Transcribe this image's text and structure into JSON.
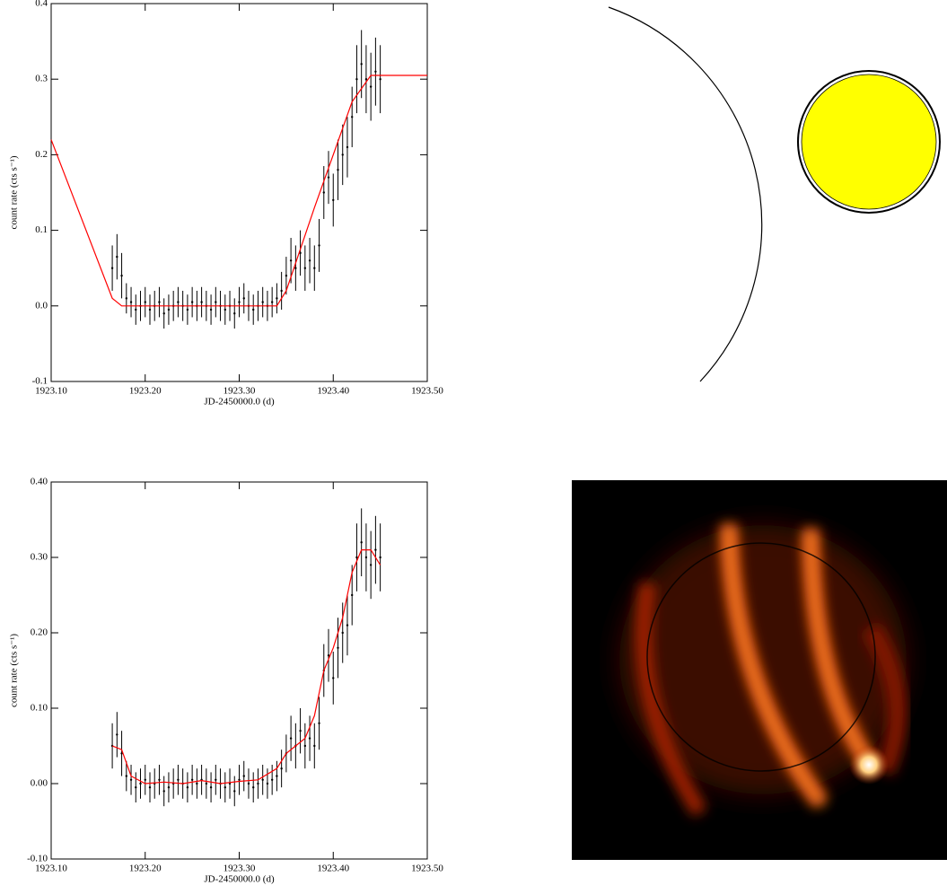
{
  "chart_data": [
    {
      "type": "errorbar",
      "xlabel": "JD-2450000.0 (d)",
      "ylabel": "count rate (cts s⁻¹)",
      "xlim": [
        1923.1,
        1923.5
      ],
      "xticks": [
        {
          "value": 1923.1,
          "label": "1923.10"
        },
        {
          "value": 1923.2,
          "label": "1923.20"
        },
        {
          "value": 1923.3,
          "label": "1923.30"
        },
        {
          "value": 1923.4,
          "label": "1923.40"
        },
        {
          "value": 1923.5,
          "label": "1923.50"
        }
      ],
      "ylim": [
        -0.1,
        0.4
      ],
      "yticks": [
        -0.1,
        {
          "value": 0,
          "label": "0.0"
        },
        0.1,
        0.2,
        0.3,
        0.4
      ],
      "series": [
        {
          "type": "errorbar",
          "color": "#000000",
          "x": [
            1923.165,
            1923.17,
            1923.175,
            1923.18,
            1923.185,
            1923.19,
            1923.195,
            1923.2,
            1923.205,
            1923.21,
            1923.215,
            1923.22,
            1923.225,
            1923.23,
            1923.235,
            1923.24,
            1923.245,
            1923.25,
            1923.255,
            1923.26,
            1923.265,
            1923.27,
            1923.275,
            1923.28,
            1923.285,
            1923.29,
            1923.295,
            1923.3,
            1923.305,
            1923.31,
            1923.315,
            1923.32,
            1923.325,
            1923.33,
            1923.335,
            1923.34,
            1923.345,
            1923.35,
            1923.355,
            1923.36,
            1923.365,
            1923.37,
            1923.375,
            1923.38,
            1923.385,
            1923.39,
            1923.395,
            1923.4,
            1923.405,
            1923.41,
            1923.415,
            1923.42,
            1923.425,
            1923.43,
            1923.435,
            1923.44,
            1923.445,
            1923.45
          ],
          "values": [
            0.05,
            0.065,
            0.04,
            0.01,
            0.005,
            -0.005,
            0,
            0.005,
            -0.005,
            0,
            0.005,
            -0.01,
            -0.005,
            0,
            0.005,
            0,
            -0.005,
            0.005,
            0,
            0.005,
            0,
            -0.005,
            0.005,
            0,
            -0.005,
            0,
            -0.01,
            0.005,
            0.01,
            0,
            -0.005,
            0,
            0.005,
            0,
            0.005,
            0.01,
            0.02,
            0.04,
            0.06,
            0.05,
            0.07,
            0.05,
            0.06,
            0.05,
            0.08,
            0.15,
            0.17,
            0.14,
            0.18,
            0.2,
            0.21,
            0.25,
            0.3,
            0.32,
            0.3,
            0.29,
            0.31,
            0.3
          ],
          "errors": [
            0.03,
            0.03,
            0.03,
            0.02,
            0.02,
            0.02,
            0.02,
            0.02,
            0.02,
            0.02,
            0.02,
            0.02,
            0.02,
            0.02,
            0.02,
            0.02,
            0.02,
            0.02,
            0.02,
            0.02,
            0.02,
            0.02,
            0.02,
            0.02,
            0.02,
            0.02,
            0.02,
            0.02,
            0.02,
            0.02,
            0.02,
            0.02,
            0.02,
            0.02,
            0.02,
            0.02,
            0.025,
            0.025,
            0.03,
            0.03,
            0.03,
            0.03,
            0.03,
            0.03,
            0.035,
            0.035,
            0.035,
            0.035,
            0.04,
            0.04,
            0.04,
            0.04,
            0.045,
            0.045,
            0.045,
            0.045,
            0.045,
            0.045
          ]
        },
        {
          "type": "line",
          "color": "#ff0000",
          "x": [
            1923.1,
            1923.165,
            1923.175,
            1923.34,
            1923.35,
            1923.38,
            1923.42,
            1923.44,
            1923.5
          ],
          "values": [
            0.22,
            0.01,
            0,
            0,
            0.02,
            0.13,
            0.27,
            0.305,
            0.305
          ]
        }
      ]
    },
    {
      "type": "errorbar",
      "xlabel": "JD-2450000.0 (d)",
      "ylabel": "count rate (cts s⁻¹)",
      "xlim": [
        1923.1,
        1923.5
      ],
      "xticks": [
        {
          "value": 1923.1,
          "label": "1923.10"
        },
        {
          "value": 1923.2,
          "label": "1923.20"
        },
        {
          "value": 1923.3,
          "label": "1923.30"
        },
        {
          "value": 1923.4,
          "label": "1923.40"
        },
        {
          "value": 1923.5,
          "label": "1923.50"
        }
      ],
      "ylim": [
        -0.1,
        0.4
      ],
      "yticks": [
        {
          "value": -0.1,
          "label": "-0.10"
        },
        {
          "value": 0,
          "label": "0.00"
        },
        {
          "value": 0.1,
          "label": "0.10"
        },
        {
          "value": 0.2,
          "label": "0.20"
        },
        {
          "value": 0.3,
          "label": "0.30"
        },
        {
          "value": 0.4,
          "label": "0.40"
        }
      ],
      "series": [
        {
          "type": "errorbar",
          "color": "#000000",
          "x": [
            1923.165,
            1923.17,
            1923.175,
            1923.18,
            1923.185,
            1923.19,
            1923.195,
            1923.2,
            1923.205,
            1923.21,
            1923.215,
            1923.22,
            1923.225,
            1923.23,
            1923.235,
            1923.24,
            1923.245,
            1923.25,
            1923.255,
            1923.26,
            1923.265,
            1923.27,
            1923.275,
            1923.28,
            1923.285,
            1923.29,
            1923.295,
            1923.3,
            1923.305,
            1923.31,
            1923.315,
            1923.32,
            1923.325,
            1923.33,
            1923.335,
            1923.34,
            1923.345,
            1923.35,
            1923.355,
            1923.36,
            1923.365,
            1923.37,
            1923.375,
            1923.38,
            1923.385,
            1923.39,
            1923.395,
            1923.4,
            1923.405,
            1923.41,
            1923.415,
            1923.42,
            1923.425,
            1923.43,
            1923.435,
            1923.44,
            1923.445,
            1923.45
          ],
          "values": [
            0.05,
            0.065,
            0.04,
            0.01,
            0.005,
            -0.005,
            0,
            0.005,
            -0.005,
            0,
            0.005,
            -0.01,
            -0.005,
            0,
            0.005,
            0,
            -0.005,
            0.005,
            0,
            0.005,
            0,
            -0.005,
            0.005,
            0,
            -0.005,
            0,
            -0.01,
            0.005,
            0.01,
            0,
            -0.005,
            0,
            0.005,
            0,
            0.005,
            0.01,
            0.02,
            0.04,
            0.06,
            0.05,
            0.07,
            0.05,
            0.06,
            0.05,
            0.08,
            0.15,
            0.17,
            0.14,
            0.18,
            0.2,
            0.21,
            0.25,
            0.3,
            0.32,
            0.3,
            0.29,
            0.31,
            0.3
          ],
          "errors": [
            0.03,
            0.03,
            0.03,
            0.02,
            0.02,
            0.02,
            0.02,
            0.02,
            0.02,
            0.02,
            0.02,
            0.02,
            0.02,
            0.02,
            0.02,
            0.02,
            0.02,
            0.02,
            0.02,
            0.02,
            0.02,
            0.02,
            0.02,
            0.02,
            0.02,
            0.02,
            0.02,
            0.02,
            0.02,
            0.02,
            0.02,
            0.02,
            0.02,
            0.02,
            0.02,
            0.02,
            0.025,
            0.025,
            0.03,
            0.03,
            0.03,
            0.03,
            0.03,
            0.03,
            0.035,
            0.035,
            0.035,
            0.035,
            0.04,
            0.04,
            0.04,
            0.04,
            0.045,
            0.045,
            0.045,
            0.045,
            0.045,
            0.045
          ]
        },
        {
          "type": "line",
          "color": "#ff0000",
          "x": [
            1923.165,
            1923.175,
            1923.185,
            1923.2,
            1923.22,
            1923.24,
            1923.26,
            1923.28,
            1923.3,
            1923.32,
            1923.34,
            1923.35,
            1923.36,
            1923.37,
            1923.38,
            1923.39,
            1923.4,
            1923.41,
            1923.42,
            1923.43,
            1923.44,
            1923.45
          ],
          "values": [
            0.05,
            0.045,
            0.01,
            0,
            0.002,
            0,
            0.004,
            0,
            0.003,
            0.005,
            0.02,
            0.04,
            0.05,
            0.06,
            0.09,
            0.15,
            0.18,
            0.22,
            0.28,
            0.31,
            0.31,
            0.29
          ]
        }
      ]
    }
  ]
}
